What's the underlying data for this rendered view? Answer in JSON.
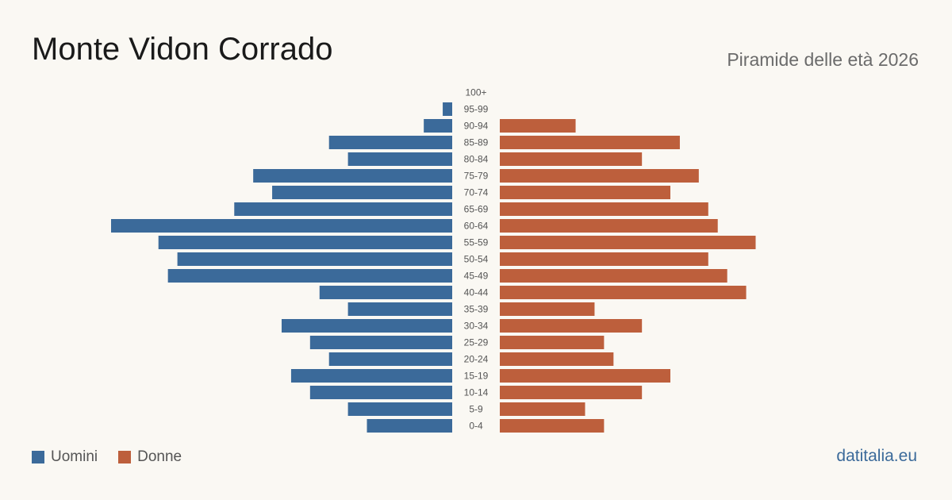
{
  "header": {
    "title": "Monte Vidon Corrado",
    "subtitle": "Piramide delle età 2026"
  },
  "legend": {
    "men_label": "Uomini",
    "women_label": "Donne"
  },
  "brand": "datitalia.eu",
  "colors": {
    "men": "#3b6a9a",
    "women": "#bd5f3c",
    "age_label": "#555555"
  },
  "chart_data": {
    "type": "bar",
    "orientation": "horizontal-pyramid",
    "categories": [
      "100+",
      "95-99",
      "90-94",
      "85-89",
      "80-84",
      "75-79",
      "70-74",
      "65-69",
      "60-64",
      "55-59",
      "50-54",
      "45-49",
      "40-44",
      "35-39",
      "30-34",
      "25-29",
      "20-24",
      "15-19",
      "10-14",
      "5-9",
      "0-4"
    ],
    "series": [
      {
        "name": "Uomini",
        "values": [
          0,
          1,
          3,
          13,
          11,
          21,
          19,
          23,
          36,
          31,
          29,
          30,
          14,
          11,
          18,
          15,
          13,
          17,
          15,
          11,
          9
        ]
      },
      {
        "name": "Donne",
        "values": [
          0,
          0,
          8,
          19,
          15,
          21,
          18,
          22,
          23,
          27,
          22,
          24,
          26,
          10,
          15,
          11,
          12,
          18,
          15,
          9,
          11
        ]
      }
    ],
    "xlim": [
      0,
      36
    ],
    "grid": false,
    "legend_position": "bottom-left"
  }
}
